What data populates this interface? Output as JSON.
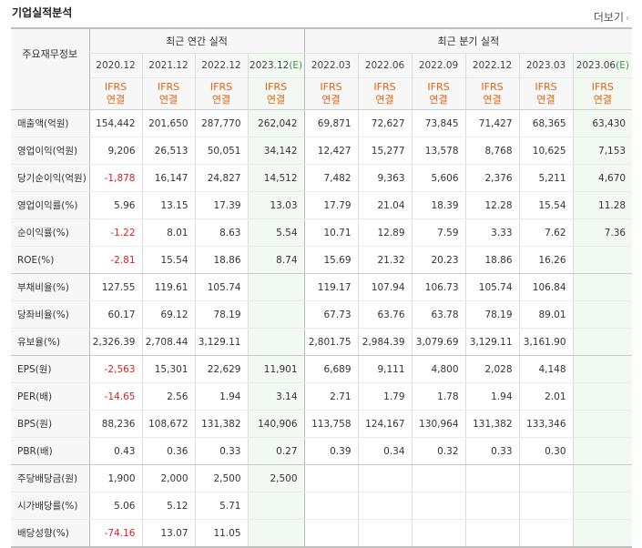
{
  "page": {
    "title": "기업실적분석",
    "more_label": "더보기"
  },
  "header": {
    "label": "주요재무정보",
    "group_annual": "최근 연간 실적",
    "group_quarter": "최근 분기 실적",
    "periods": [
      "2020.12",
      "2021.12",
      "2022.12",
      "2023.12",
      "2022.03",
      "2022.06",
      "2022.09",
      "2022.12",
      "2023.03",
      "2023.06"
    ],
    "estimate_mark": "(E)",
    "ifrs": "IFRS",
    "consolidated": "연결"
  },
  "rows": [
    {
      "label": "매출액(억원)",
      "values": [
        "154,442",
        "201,650",
        "287,770",
        "262,042",
        "69,871",
        "72,627",
        "73,845",
        "71,427",
        "68,365",
        "63,430"
      ]
    },
    {
      "label": "영업이익(억원)",
      "values": [
        "9,206",
        "26,513",
        "50,051",
        "34,142",
        "12,427",
        "15,277",
        "13,578",
        "8,768",
        "10,625",
        "7,153"
      ]
    },
    {
      "label": "당기순이익(억원)",
      "values": [
        "-1,878",
        "16,147",
        "24,827",
        "14,512",
        "7,482",
        "9,363",
        "5,606",
        "2,376",
        "5,211",
        "4,670"
      ]
    },
    {
      "label": "영업이익률(%)",
      "values": [
        "5.96",
        "13.15",
        "17.39",
        "13.03",
        "17.79",
        "21.04",
        "18.39",
        "12.28",
        "15.54",
        "11.28"
      ]
    },
    {
      "label": "순이익률(%)",
      "values": [
        "-1.22",
        "8.01",
        "8.63",
        "5.54",
        "10.71",
        "12.89",
        "7.59",
        "3.33",
        "7.62",
        "7.36"
      ]
    },
    {
      "label": "ROE(%)",
      "values": [
        "-2.81",
        "15.54",
        "18.86",
        "8.74",
        "15.69",
        "21.32",
        "20.23",
        "18.86",
        "16.26",
        ""
      ]
    },
    {
      "label": "부채비율(%)",
      "values": [
        "127.55",
        "119.61",
        "105.74",
        "",
        "119.17",
        "107.94",
        "106.73",
        "105.74",
        "106.84",
        ""
      ]
    },
    {
      "label": "당좌비율(%)",
      "values": [
        "60.17",
        "69.12",
        "78.19",
        "",
        "67.73",
        "63.76",
        "63.78",
        "78.19",
        "89.01",
        ""
      ]
    },
    {
      "label": "유보율(%)",
      "values": [
        "2,326.39",
        "2,708.44",
        "3,129.11",
        "",
        "2,801.75",
        "2,984.39",
        "3,079.69",
        "3,129.11",
        "3,161.90",
        ""
      ]
    },
    {
      "label": "EPS(원)",
      "values": [
        "-2,563",
        "15,301",
        "22,629",
        "11,901",
        "6,689",
        "9,111",
        "4,800",
        "2,028",
        "4,148",
        ""
      ]
    },
    {
      "label": "PER(배)",
      "values": [
        "-14.65",
        "2.56",
        "1.94",
        "3.14",
        "2.71",
        "1.79",
        "1.78",
        "1.94",
        "2.01",
        ""
      ]
    },
    {
      "label": "BPS(원)",
      "values": [
        "88,236",
        "108,672",
        "131,382",
        "140,906",
        "113,758",
        "124,167",
        "130,964",
        "131,382",
        "133,346",
        ""
      ]
    },
    {
      "label": "PBR(배)",
      "values": [
        "0.43",
        "0.36",
        "0.33",
        "0.27",
        "0.39",
        "0.34",
        "0.32",
        "0.33",
        "0.30",
        ""
      ]
    },
    {
      "label": "주당배당금(원)",
      "values": [
        "1,900",
        "2,000",
        "2,500",
        "2,500",
        "",
        "",
        "",
        "",
        "",
        ""
      ]
    },
    {
      "label": "시가배당률(%)",
      "values": [
        "5.06",
        "5.12",
        "5.71",
        "",
        "",
        "",
        "",
        "",
        "",
        ""
      ]
    },
    {
      "label": "배당성향(%)",
      "values": [
        "-74.16",
        "13.07",
        "11.05",
        "",
        "",
        "",
        "",
        "",
        "",
        ""
      ]
    }
  ],
  "colors": {
    "negative": "#e02020",
    "ifrs_orange": "#e8600f",
    "estimate_bg": "#f2f8f2",
    "estimate_mark": "#3c9a3c"
  }
}
